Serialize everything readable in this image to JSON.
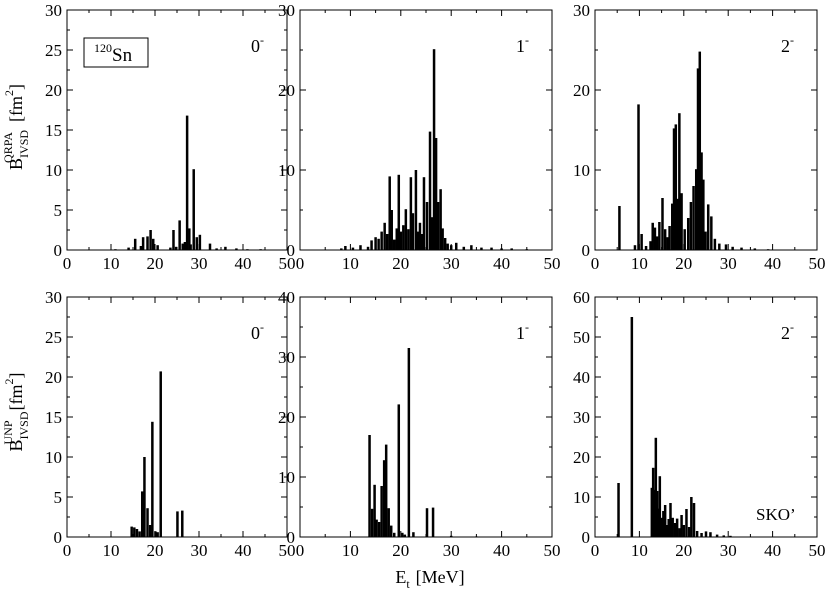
{
  "figure": {
    "xlabel": {
      "base": "E",
      "sub": "t",
      "unit": "[MeV]"
    },
    "ylabel_top": {
      "base": "B",
      "sub": "IVSD",
      "sup": "QRPA",
      "unit": "[fm",
      "unit_sup": "2",
      "unit_end": "]"
    },
    "ylabel_bottom": {
      "base": "B",
      "sub": "IVSD",
      "sup": "UNP",
      "unit": "[fm",
      "unit_sup": "2",
      "unit_end": "]"
    },
    "nucleus_label": {
      "mass": "120",
      "symbol": "Sn"
    },
    "model_label": "SKO’"
  },
  "chart_data": [
    {
      "type": "bar",
      "panel": "top-left",
      "multipole": "0",
      "parity": "-",
      "xlim": [
        0,
        50
      ],
      "ylim": [
        0,
        30
      ],
      "xticks": [
        0,
        10,
        20,
        30,
        40,
        50
      ],
      "yticks": [
        0,
        5,
        10,
        15,
        20,
        25,
        30
      ],
      "x": [
        11.0,
        14.0,
        15.5,
        16.8,
        17.3,
        18.3,
        19.0,
        19.6,
        20.6,
        23.5,
        24.2,
        24.8,
        25.6,
        26.3,
        26.8,
        27.3,
        27.8,
        28.1,
        28.8,
        29.5,
        30.2,
        32.5,
        34.0,
        36.0,
        38.5,
        41.0,
        44.0
      ],
      "values": [
        0.1,
        0.3,
        1.4,
        0.5,
        1.6,
        1.7,
        2.5,
        1.4,
        0.6,
        0.3,
        2.5,
        0.4,
        3.7,
        0.8,
        1.0,
        16.8,
        2.7,
        0.7,
        10.1,
        1.6,
        1.9,
        0.8,
        0.2,
        0.4,
        0.2,
        0.1,
        0.1
      ]
    },
    {
      "type": "bar",
      "panel": "top-middle",
      "multipole": "1",
      "parity": "-",
      "xlim": [
        0,
        50
      ],
      "ylim": [
        0,
        30
      ],
      "xticks": [
        0,
        10,
        20,
        30,
        40,
        50
      ],
      "yticks": [
        0,
        10,
        20,
        30
      ],
      "x": [
        8.2,
        9.0,
        10.5,
        12.0,
        13.5,
        14.2,
        15.0,
        15.6,
        16.2,
        16.8,
        17.3,
        17.8,
        18.2,
        18.7,
        19.2,
        19.6,
        20.0,
        20.5,
        21.0,
        21.5,
        22.0,
        22.4,
        23.0,
        23.4,
        23.8,
        24.2,
        24.6,
        25.2,
        25.8,
        26.2,
        26.6,
        27.0,
        27.4,
        27.9,
        28.3,
        28.8,
        29.3,
        30.0,
        31.0,
        32.5,
        34.0,
        36.0,
        38.0,
        40.0,
        42.0,
        45.0
      ],
      "values": [
        0.2,
        0.5,
        0.3,
        0.6,
        0.4,
        1.2,
        1.6,
        1.4,
        2.3,
        3.4,
        2.0,
        9.2,
        5.0,
        1.3,
        2.7,
        9.4,
        2.3,
        3.1,
        5.1,
        2.6,
        9.1,
        4.6,
        10.0,
        2.3,
        3.4,
        2.0,
        9.1,
        6.0,
        14.8,
        4.1,
        25.1,
        14.0,
        6.0,
        7.6,
        2.7,
        1.5,
        0.8,
        0.6,
        0.9,
        0.4,
        0.6,
        0.3,
        0.3,
        0.2,
        0.2,
        0.1
      ]
    },
    {
      "type": "bar",
      "panel": "top-right",
      "multipole": "2",
      "parity": "-",
      "xlim": [
        0,
        50
      ],
      "ylim": [
        0,
        30
      ],
      "xticks": [
        0,
        10,
        20,
        30,
        40,
        50
      ],
      "yticks": [
        0,
        10,
        20,
        30
      ],
      "x": [
        5.5,
        9.0,
        9.8,
        10.5,
        11.5,
        12.5,
        13.0,
        13.5,
        14.0,
        14.5,
        15.2,
        15.8,
        16.3,
        16.8,
        17.4,
        17.8,
        18.2,
        18.6,
        19.0,
        19.5,
        20.2,
        21.0,
        21.6,
        22.2,
        22.8,
        23.2,
        23.6,
        24.0,
        24.4,
        24.9,
        25.5,
        26.2,
        27.0,
        28.0,
        29.5,
        31.0,
        33.0,
        36.0,
        39.0
      ],
      "values": [
        5.5,
        0.6,
        18.2,
        2.0,
        0.5,
        1.1,
        3.4,
        2.8,
        1.7,
        3.5,
        6.5,
        2.6,
        1.6,
        3.0,
        5.8,
        15.2,
        15.7,
        6.4,
        17.1,
        7.1,
        2.6,
        4.0,
        6.0,
        8.0,
        10.1,
        22.7,
        24.8,
        12.2,
        8.8,
        2.3,
        5.7,
        4.2,
        1.4,
        0.8,
        0.7,
        0.4,
        0.3,
        0.2,
        0.1
      ]
    },
    {
      "type": "bar",
      "panel": "bottom-left",
      "multipole": "0",
      "parity": "-",
      "xlim": [
        0,
        50
      ],
      "ylim": [
        0,
        30
      ],
      "xticks": [
        0,
        10,
        20,
        30,
        40,
        50
      ],
      "yticks": [
        0,
        5,
        10,
        15,
        20,
        25,
        30
      ],
      "x": [
        14.7,
        15.3,
        15.9,
        16.5,
        17.1,
        17.6,
        18.3,
        18.9,
        19.4,
        20.1,
        20.6,
        21.3,
        25.1,
        26.2
      ],
      "values": [
        1.3,
        1.2,
        1.0,
        0.7,
        5.7,
        10.0,
        3.6,
        1.5,
        14.4,
        0.7,
        0.6,
        20.7,
        3.2,
        3.3
      ]
    },
    {
      "type": "bar",
      "panel": "bottom-middle",
      "multipole": "1",
      "parity": "-",
      "xlim": [
        0,
        50
      ],
      "ylim": [
        0,
        40
      ],
      "xticks": [
        0,
        10,
        20,
        30,
        40,
        50
      ],
      "yticks": [
        0,
        10,
        20,
        30,
        40
      ],
      "x": [
        13.8,
        14.3,
        14.8,
        15.2,
        15.7,
        16.2,
        16.7,
        17.1,
        17.6,
        18.1,
        18.7,
        19.6,
        20.3,
        20.8,
        21.6,
        22.5,
        25.2,
        26.4,
        30.0,
        35.0
      ],
      "values": [
        17.0,
        4.7,
        8.7,
        2.9,
        2.5,
        8.5,
        12.8,
        15.4,
        4.8,
        1.9,
        0.7,
        22.1,
        0.7,
        0.4,
        31.5,
        0.8,
        4.8,
        4.9,
        0.2,
        0.1
      ]
    },
    {
      "type": "bar",
      "panel": "bottom-right",
      "multipole": "2",
      "parity": "-",
      "xlim": [
        0,
        50
      ],
      "ylim": [
        0,
        60
      ],
      "xticks": [
        0,
        10,
        20,
        30,
        40,
        50
      ],
      "yticks": [
        0,
        10,
        20,
        30,
        40,
        50,
        60
      ],
      "x": [
        5.3,
        8.3,
        12.8,
        13.1,
        13.4,
        13.7,
        14.0,
        14.3,
        14.6,
        15.0,
        15.4,
        15.8,
        16.2,
        16.6,
        17.0,
        17.5,
        18.0,
        18.5,
        19.0,
        19.5,
        20.0,
        20.6,
        21.2,
        21.7,
        22.3,
        23.0,
        24.0,
        25.0,
        26.0,
        27.5,
        29.0,
        30.5
      ],
      "values": [
        13.5,
        55.0,
        12.3,
        17.3,
        11.8,
        24.8,
        11.5,
        7.1,
        15.2,
        4.8,
        6.5,
        8.0,
        3.0,
        4.5,
        8.5,
        4.8,
        3.5,
        4.6,
        2.2,
        5.5,
        3.0,
        7.0,
        2.5,
        10.0,
        8.5,
        1.5,
        1.0,
        1.4,
        1.2,
        0.6,
        0.4,
        0.3
      ]
    }
  ]
}
